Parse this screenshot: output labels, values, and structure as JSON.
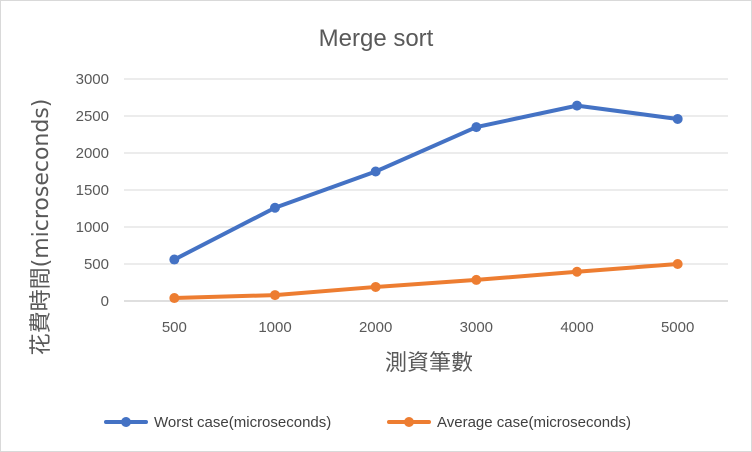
{
  "chart_data": {
    "type": "line",
    "title": "Merge sort",
    "xlabel": "測資筆數",
    "ylabel": "花費時間(microseconds)",
    "categories": [
      "500",
      "1000",
      "2000",
      "3000",
      "4000",
      "5000"
    ],
    "ylim": [
      0,
      3000
    ],
    "yticks": [
      "0",
      "500",
      "1000",
      "1500",
      "2000",
      "2500",
      "3000"
    ],
    "grid": true,
    "legend": "bottom",
    "series": [
      {
        "name": "Worst case(microseconds)",
        "values": [
          560,
          1260,
          1750,
          2350,
          2640,
          2460
        ],
        "color": "#4472c4"
      },
      {
        "name": "Average case(microseconds)",
        "values": [
          40,
          80,
          190,
          285,
          395,
          500
        ],
        "color": "#ed7d31"
      }
    ]
  }
}
